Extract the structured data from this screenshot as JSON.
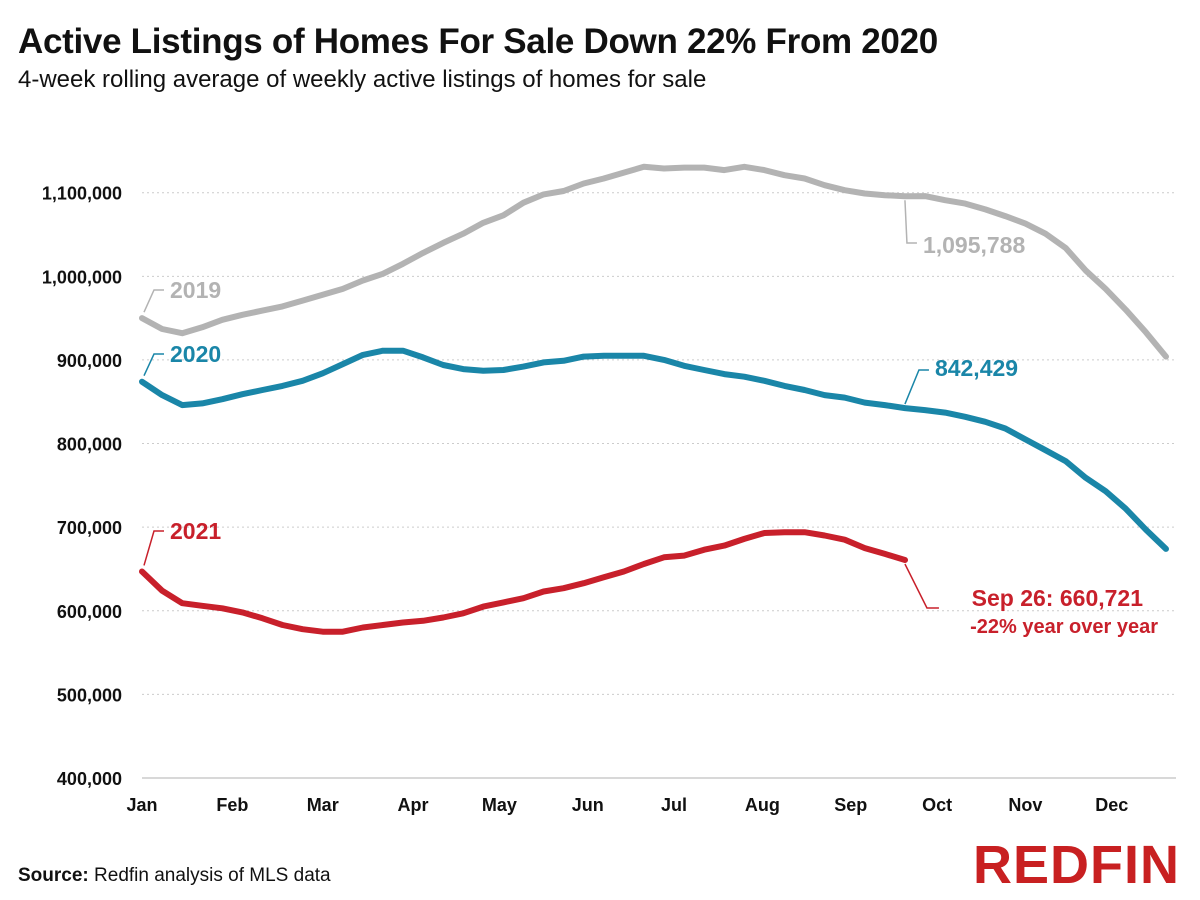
{
  "title": "Active Listings of Homes For Sale Down 22% From 2020",
  "subtitle": "4-week rolling average of weekly active listings of homes for sale",
  "source": {
    "label": "Source:",
    "text": "Redfin analysis of MLS data"
  },
  "logo": "REDFIN",
  "colors": {
    "2019": "#b3b3b3",
    "2020": "#1a86a8",
    "2021": "#c8202b",
    "grid": "#cccccc",
    "text": "#111111"
  },
  "chart_data": {
    "type": "line",
    "title": "Active Listings of Homes For Sale Down 22% From 2020",
    "subtitle": "4-week rolling average of weekly active listings of homes for sale",
    "xlabel": "",
    "ylabel": "",
    "x_unit": "week of year",
    "xlim": [
      1,
      52.5
    ],
    "ylim": [
      400000,
      1175000
    ],
    "grid": "horizontal",
    "x_ticks": [
      {
        "label": "Jan",
        "x": 1
      },
      {
        "label": "Feb",
        "x": 5.5
      },
      {
        "label": "Mar",
        "x": 10
      },
      {
        "label": "Apr",
        "x": 14.5
      },
      {
        "label": "May",
        "x": 18.8
      },
      {
        "label": "Jun",
        "x": 23.2
      },
      {
        "label": "Jul",
        "x": 27.5
      },
      {
        "label": "Aug",
        "x": 31.9
      },
      {
        "label": "Sep",
        "x": 36.3
      },
      {
        "label": "Oct",
        "x": 40.6
      },
      {
        "label": "Nov",
        "x": 45
      },
      {
        "label": "Dec",
        "x": 49.3
      }
    ],
    "y_ticks": [
      {
        "label": "400,000",
        "value": 400000
      },
      {
        "label": "500,000",
        "value": 500000
      },
      {
        "label": "600,000",
        "value": 600000
      },
      {
        "label": "700,000",
        "value": 700000
      },
      {
        "label": "800,000",
        "value": 800000
      },
      {
        "label": "900,000",
        "value": 900000
      },
      {
        "label": "1,000,000",
        "value": 1000000
      },
      {
        "label": "1,100,000",
        "value": 1100000
      }
    ],
    "series": [
      {
        "name": "2019",
        "color": "#b3b3b3",
        "x": [
          1,
          2,
          3,
          4,
          5,
          6,
          7,
          8,
          9,
          10,
          11,
          12,
          13,
          14,
          15,
          16,
          17,
          18,
          19,
          20,
          21,
          22,
          23,
          24,
          25,
          26,
          27,
          28,
          29,
          30,
          31,
          32,
          33,
          34,
          35,
          36,
          37,
          38,
          39,
          40,
          41,
          42,
          43,
          44,
          45,
          46,
          47,
          48,
          49,
          50,
          51,
          52
        ],
        "values": [
          950000,
          937000,
          932000,
          939000,
          948000,
          954000,
          959000,
          964000,
          971000,
          978000,
          985000,
          995000,
          1003000,
          1015000,
          1028000,
          1040000,
          1051000,
          1064000,
          1073000,
          1088000,
          1098000,
          1102000,
          1111000,
          1117000,
          1124000,
          1131000,
          1129000,
          1130000,
          1130000,
          1127000,
          1131000,
          1127000,
          1121000,
          1117000,
          1109000,
          1103000,
          1099000,
          1097000,
          1095788,
          1096000,
          1091000,
          1087000,
          1080000,
          1072000,
          1063000,
          1051000,
          1034000,
          1007000,
          985000,
          960000,
          933000,
          904000
        ]
      },
      {
        "name": "2020",
        "color": "#1a86a8",
        "x": [
          1,
          2,
          3,
          4,
          5,
          6,
          7,
          8,
          9,
          10,
          11,
          12,
          13,
          14,
          15,
          16,
          17,
          18,
          19,
          20,
          21,
          22,
          23,
          24,
          25,
          26,
          27,
          28,
          29,
          30,
          31,
          32,
          33,
          34,
          35,
          36,
          37,
          38,
          39,
          40,
          41,
          42,
          43,
          44,
          45,
          46,
          47,
          48,
          49,
          50,
          51,
          52
        ],
        "values": [
          874000,
          858000,
          846000,
          848000,
          853000,
          859000,
          864000,
          869000,
          875000,
          884000,
          895000,
          906000,
          911000,
          911000,
          903000,
          894000,
          889000,
          887000,
          888000,
          892000,
          897000,
          899000,
          904000,
          905000,
          905000,
          905000,
          900000,
          893000,
          888000,
          883000,
          880000,
          875000,
          869000,
          864000,
          858000,
          855000,
          849000,
          846000,
          842429,
          840000,
          837000,
          832000,
          826000,
          818000,
          805000,
          792000,
          779000,
          759000,
          743000,
          722000,
          697000,
          674000
        ]
      },
      {
        "name": "2021",
        "color": "#c8202b",
        "x": [
          1,
          2,
          3,
          4,
          5,
          6,
          7,
          8,
          9,
          10,
          11,
          12,
          13,
          14,
          15,
          16,
          17,
          18,
          19,
          20,
          21,
          22,
          23,
          24,
          25,
          26,
          27,
          28,
          29,
          30,
          31,
          32,
          33,
          34,
          35,
          36,
          37,
          38,
          39
        ],
        "values": [
          647000,
          624000,
          609000,
          606000,
          603000,
          598000,
          591000,
          583000,
          578000,
          575000,
          575000,
          580000,
          583000,
          586000,
          588000,
          592000,
          597000,
          605000,
          610000,
          615000,
          623000,
          627000,
          633000,
          640000,
          647000,
          656000,
          664000,
          666000,
          673000,
          678000,
          686000,
          693000,
          694000,
          694000,
          690000,
          685000,
          675000,
          668000,
          660721
        ]
      }
    ],
    "annotations": [
      {
        "series": "2019",
        "text": "2019",
        "color": "#b3b3b3"
      },
      {
        "series": "2020",
        "text": "2020",
        "color": "#1a86a8"
      },
      {
        "series": "2021",
        "text": "2021",
        "color": "#c8202b"
      },
      {
        "series": "2019",
        "text": "1,095,788",
        "color": "#b3b3b3",
        "at_x": 39
      },
      {
        "series": "2020",
        "text": "842,429",
        "color": "#1a86a8",
        "at_x": 39
      },
      {
        "series": "2021",
        "text": "Sep 26: 660,721",
        "text2": "-22% year over year",
        "color": "#c8202b",
        "at_x": 39
      }
    ]
  }
}
